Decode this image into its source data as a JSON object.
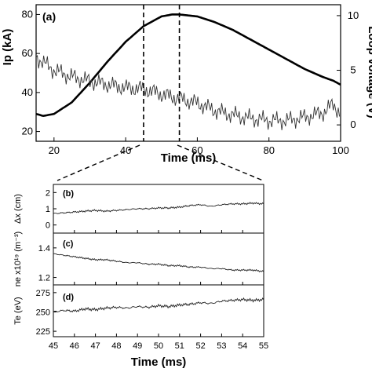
{
  "chart_data": [
    {
      "type": "line",
      "panel_label": "(a)",
      "xlabel": "Time (ms)",
      "ylabel": "Ip (kA)",
      "ylabel_right": "Loop voltage (V)",
      "xlim": [
        15,
        100
      ],
      "ylim": [
        15,
        85
      ],
      "ylim_right": [
        -1.5,
        11
      ],
      "xticks": [
        "20",
        "40",
        "60",
        "80",
        "100"
      ],
      "yticks": [
        "20",
        "40",
        "60",
        "80"
      ],
      "yticks_right": [
        "0",
        "5",
        "10"
      ],
      "markers": [
        45,
        55
      ],
      "series": [
        {
          "axis": "left",
          "x": [
            15,
            17,
            20,
            25,
            30,
            35,
            40,
            45,
            50,
            53,
            55,
            60,
            65,
            70,
            75,
            80,
            85,
            90,
            95,
            98,
            100
          ],
          "y": [
            29,
            28,
            29,
            35,
            45,
            56,
            66,
            74,
            79,
            80,
            80,
            79,
            76,
            72,
            67,
            62,
            57,
            52,
            48,
            46,
            44
          ]
        },
        {
          "axis": "right",
          "x": [
            15,
            20,
            25,
            30,
            35,
            40,
            45,
            50,
            55,
            60,
            65,
            70,
            75,
            80,
            85,
            90,
            95,
            98,
            100
          ],
          "y": [
            6.2,
            5.0,
            4.4,
            4.0,
            3.7,
            3.4,
            3.3,
            2.8,
            2.4,
            2.0,
            1.3,
            0.9,
            0.6,
            0.4,
            0.4,
            0.7,
            1.1,
            1.9,
            1.0
          ]
        }
      ]
    },
    {
      "type": "line",
      "panel_label": "(b)",
      "ylabel": "Δx (cm)",
      "xlim": [
        45,
        55
      ],
      "ylim": [
        -0.5,
        2.5
      ],
      "yticks": [
        "2",
        "1",
        "0"
      ],
      "series": [
        {
          "x": [
            45,
            45.5,
            46,
            46.5,
            47,
            47.5,
            48,
            48.5,
            49,
            49.5,
            50,
            50.5,
            51,
            51.5,
            52,
            52.5,
            53,
            53.5,
            54,
            54.5,
            55
          ],
          "y": [
            0.7,
            0.75,
            0.8,
            0.85,
            0.9,
            0.85,
            0.9,
            0.95,
            1.0,
            1.0,
            1.05,
            1.05,
            1.1,
            1.2,
            1.25,
            1.15,
            1.25,
            1.3,
            1.3,
            1.35,
            1.3
          ]
        }
      ]
    },
    {
      "type": "line",
      "panel_label": "(c)",
      "ylabel": "ne x10¹⁹ (m⁻³)",
      "xlim": [
        45,
        55
      ],
      "ylim": [
        1.15,
        1.5
      ],
      "yticks": [
        "1.4",
        "1.2"
      ],
      "series": [
        {
          "x": [
            45,
            45.5,
            46,
            46.5,
            47,
            47.5,
            48,
            48.5,
            49,
            49.5,
            50,
            50.5,
            51,
            51.5,
            52,
            52.5,
            53,
            53.5,
            54,
            54.5,
            55
          ],
          "y": [
            1.36,
            1.35,
            1.34,
            1.33,
            1.32,
            1.32,
            1.31,
            1.3,
            1.3,
            1.29,
            1.29,
            1.28,
            1.28,
            1.27,
            1.27,
            1.26,
            1.26,
            1.25,
            1.25,
            1.25,
            1.24
          ]
        }
      ]
    },
    {
      "type": "line",
      "panel_label": "(d)",
      "xlabel": "Time (ms)",
      "ylabel": "Te (eV)",
      "xlim": [
        45,
        55
      ],
      "ylim": [
        218,
        285
      ],
      "yticks": [
        "275",
        "250",
        "225"
      ],
      "xticks": [
        "45",
        "46",
        "47",
        "48",
        "49",
        "50",
        "51",
        "52",
        "53",
        "54",
        "55"
      ],
      "series": [
        {
          "x": [
            45,
            45.5,
            46,
            46.5,
            47,
            47.5,
            48,
            48.5,
            49,
            49.5,
            50,
            50.5,
            51,
            51.5,
            52,
            52.5,
            53,
            53.5,
            54,
            54.5,
            55
          ],
          "y": [
            250,
            252,
            251,
            254,
            253,
            255,
            256,
            255,
            257,
            256,
            258,
            257,
            259,
            260,
            262,
            261,
            264,
            265,
            266,
            265,
            266
          ]
        }
      ]
    }
  ]
}
